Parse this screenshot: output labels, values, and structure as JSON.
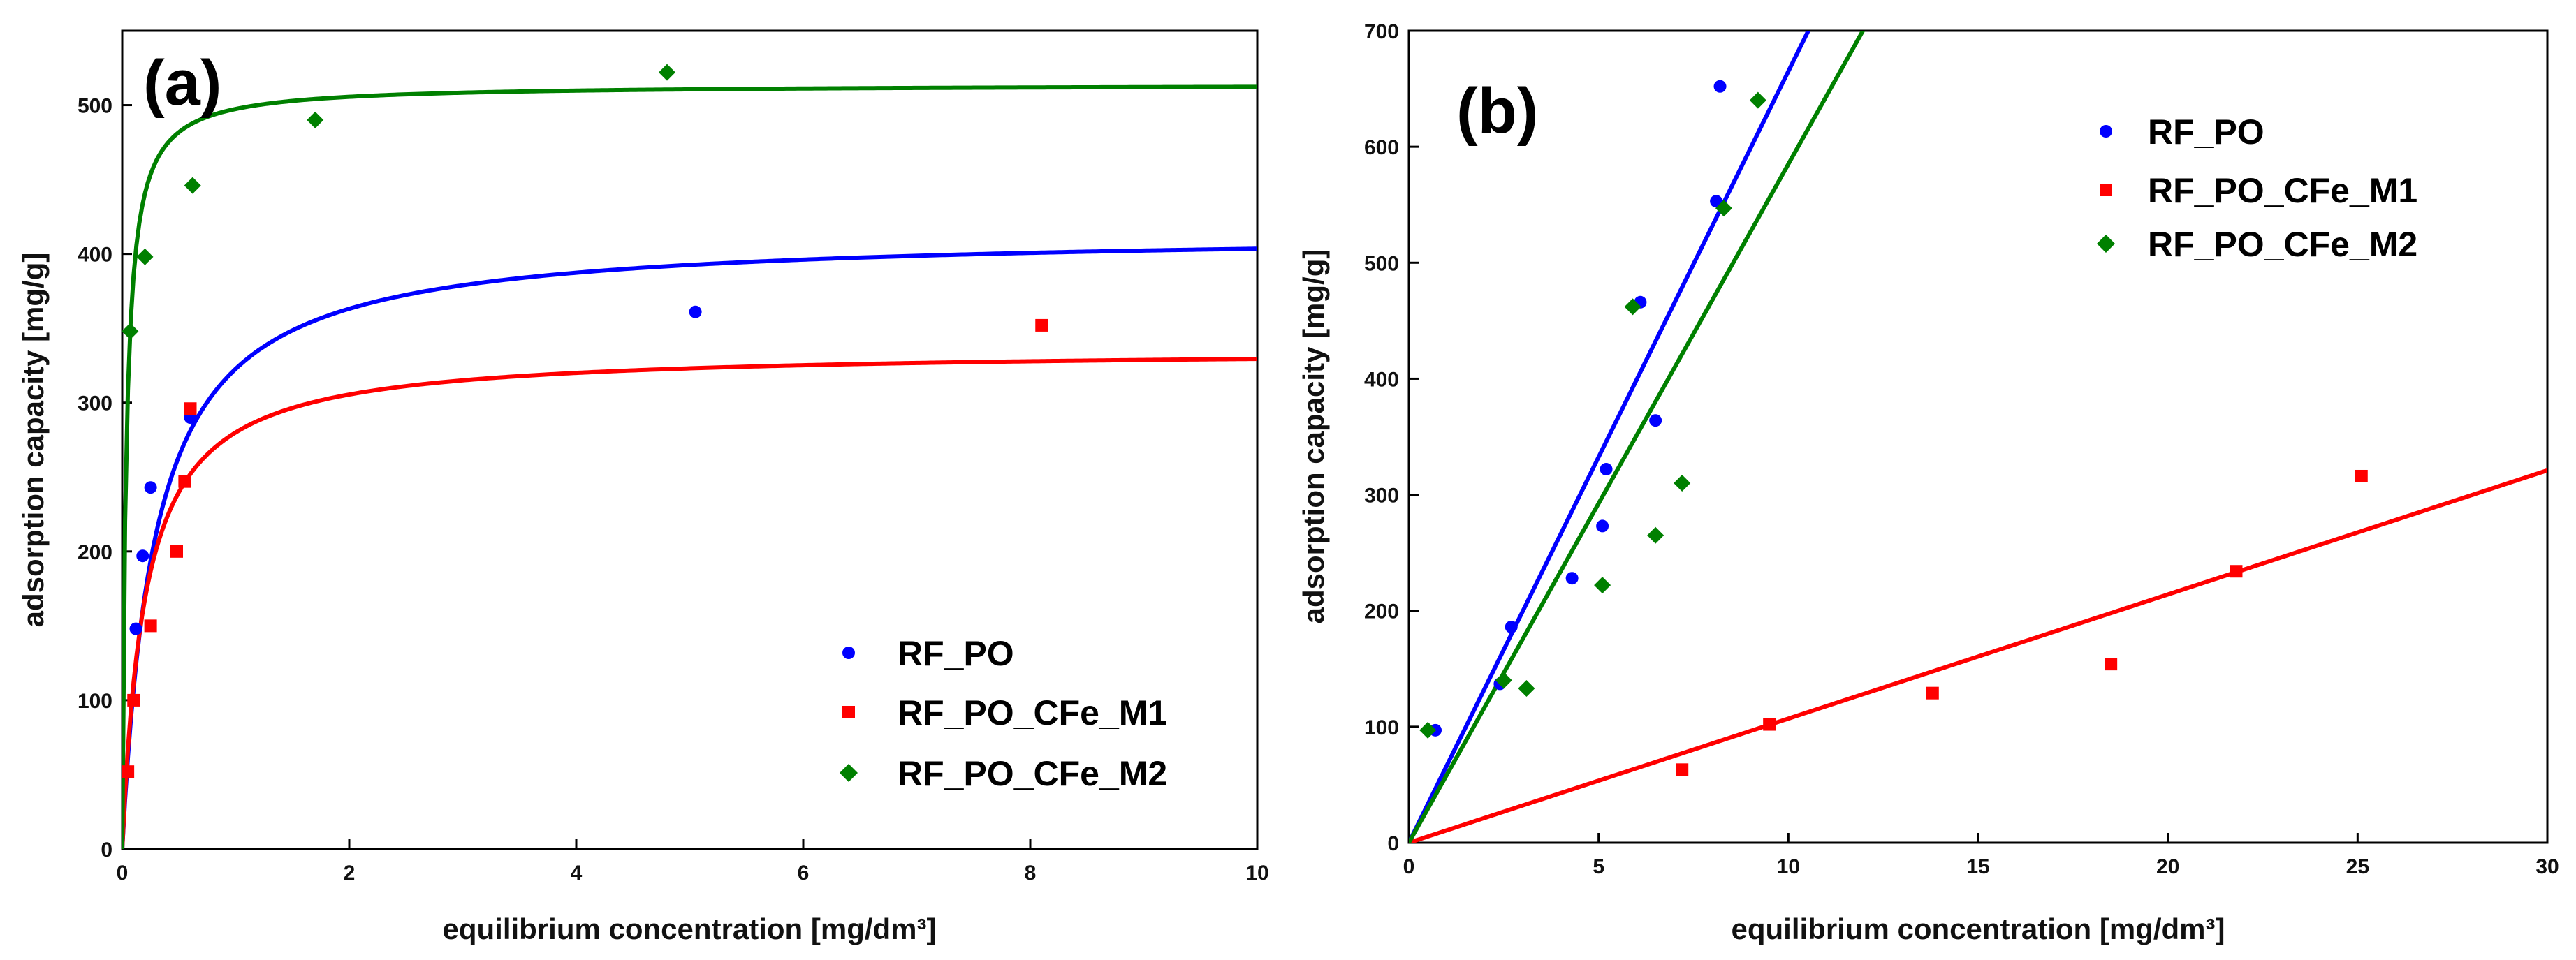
{
  "chart_data": [
    {
      "type": "scatter",
      "panel_label": "(a)",
      "xlabel": "equilibrium concentration [mg/dm³]",
      "ylabel": "adsorption capacity [mg/g]",
      "xlim": [
        0,
        10
      ],
      "ylim": [
        0,
        550
      ],
      "xticks": [
        "0",
        "2",
        "4",
        "6",
        "8",
        "10"
      ],
      "yticks": [
        "0",
        "100",
        "200",
        "300",
        "400",
        "500"
      ],
      "grid": false,
      "legend_position": "bottom-right",
      "series": [
        {
          "name": "RF_PO",
          "color": "#0000ff",
          "marker": "circle",
          "points": [
            [
              0.12,
              148
            ],
            [
              0.18,
              197
            ],
            [
              0.25,
              243
            ],
            [
              0.6,
              290
            ],
            [
              5.05,
              361
            ]
          ],
          "fit": {
            "model": "langmuir",
            "qmax": 415,
            "K": 3.5
          }
        },
        {
          "name": "RF_PO_CFe_M1",
          "color": "#ff0000",
          "marker": "square",
          "points": [
            [
              0.05,
              52
            ],
            [
              0.1,
              100
            ],
            [
              0.25,
              150
            ],
            [
              0.48,
              200
            ],
            [
              0.55,
              247
            ],
            [
              0.6,
              296
            ],
            [
              8.1,
              352
            ]
          ],
          "fit": {
            "model": "langmuir",
            "qmax": 336,
            "K": 5.0
          }
        },
        {
          "name": "RF_PO_CFe_M2",
          "color": "#008000",
          "marker": "diamond",
          "points": [
            [
              0.07,
              348
            ],
            [
              0.2,
              398
            ],
            [
              0.62,
              446
            ],
            [
              1.7,
              490
            ],
            [
              4.8,
              522
            ]
          ],
          "fit": {
            "model": "langmuir",
            "qmax": 514,
            "K": 30
          }
        }
      ]
    },
    {
      "type": "scatter",
      "panel_label": "(b)",
      "xlabel": "equilibrium concentration [mg/dm³]",
      "ylabel": "adsorption capacity [mg/g]",
      "xlim": [
        0,
        30
      ],
      "ylim": [
        0,
        700
      ],
      "xticks": [
        "0",
        "5",
        "10",
        "15",
        "20",
        "25",
        "30"
      ],
      "yticks": [
        "0",
        "100",
        "200",
        "300",
        "400",
        "500",
        "600",
        "700"
      ],
      "grid": false,
      "legend_position": "top-right",
      "series": [
        {
          "name": "RF_PO",
          "color": "#0000ff",
          "marker": "circle",
          "points": [
            [
              0.7,
              97
            ],
            [
              2.4,
              137
            ],
            [
              2.7,
              186
            ],
            [
              4.3,
              228
            ],
            [
              5.1,
              273
            ],
            [
              5.2,
              322
            ],
            [
              6.5,
              364
            ],
            [
              6.1,
              466
            ],
            [
              8.1,
              553
            ],
            [
              8.2,
              652
            ]
          ],
          "fit": {
            "model": "linear",
            "slope": 66.5,
            "intercept": 0
          }
        },
        {
          "name": "RF_PO_CFe_M1",
          "color": "#ff0000",
          "marker": "square",
          "points": [
            [
              7.2,
              63
            ],
            [
              9.5,
              102
            ],
            [
              13.8,
              129
            ],
            [
              18.5,
              154
            ],
            [
              21.8,
              234
            ],
            [
              25.1,
              316
            ]
          ],
          "fit": {
            "model": "linear",
            "slope": 10.7,
            "intercept": 0
          }
        },
        {
          "name": "RF_PO_CFe_M2",
          "color": "#008000",
          "marker": "diamond",
          "points": [
            [
              0.5,
              97
            ],
            [
              2.5,
              140
            ],
            [
              3.1,
              133
            ],
            [
              5.1,
              222
            ],
            [
              6.5,
              265
            ],
            [
              7.2,
              310
            ],
            [
              5.9,
              462
            ],
            [
              8.3,
              547
            ],
            [
              9.2,
              640
            ]
          ],
          "fit": {
            "model": "linear",
            "slope": 58.5,
            "intercept": 0
          }
        }
      ]
    }
  ]
}
